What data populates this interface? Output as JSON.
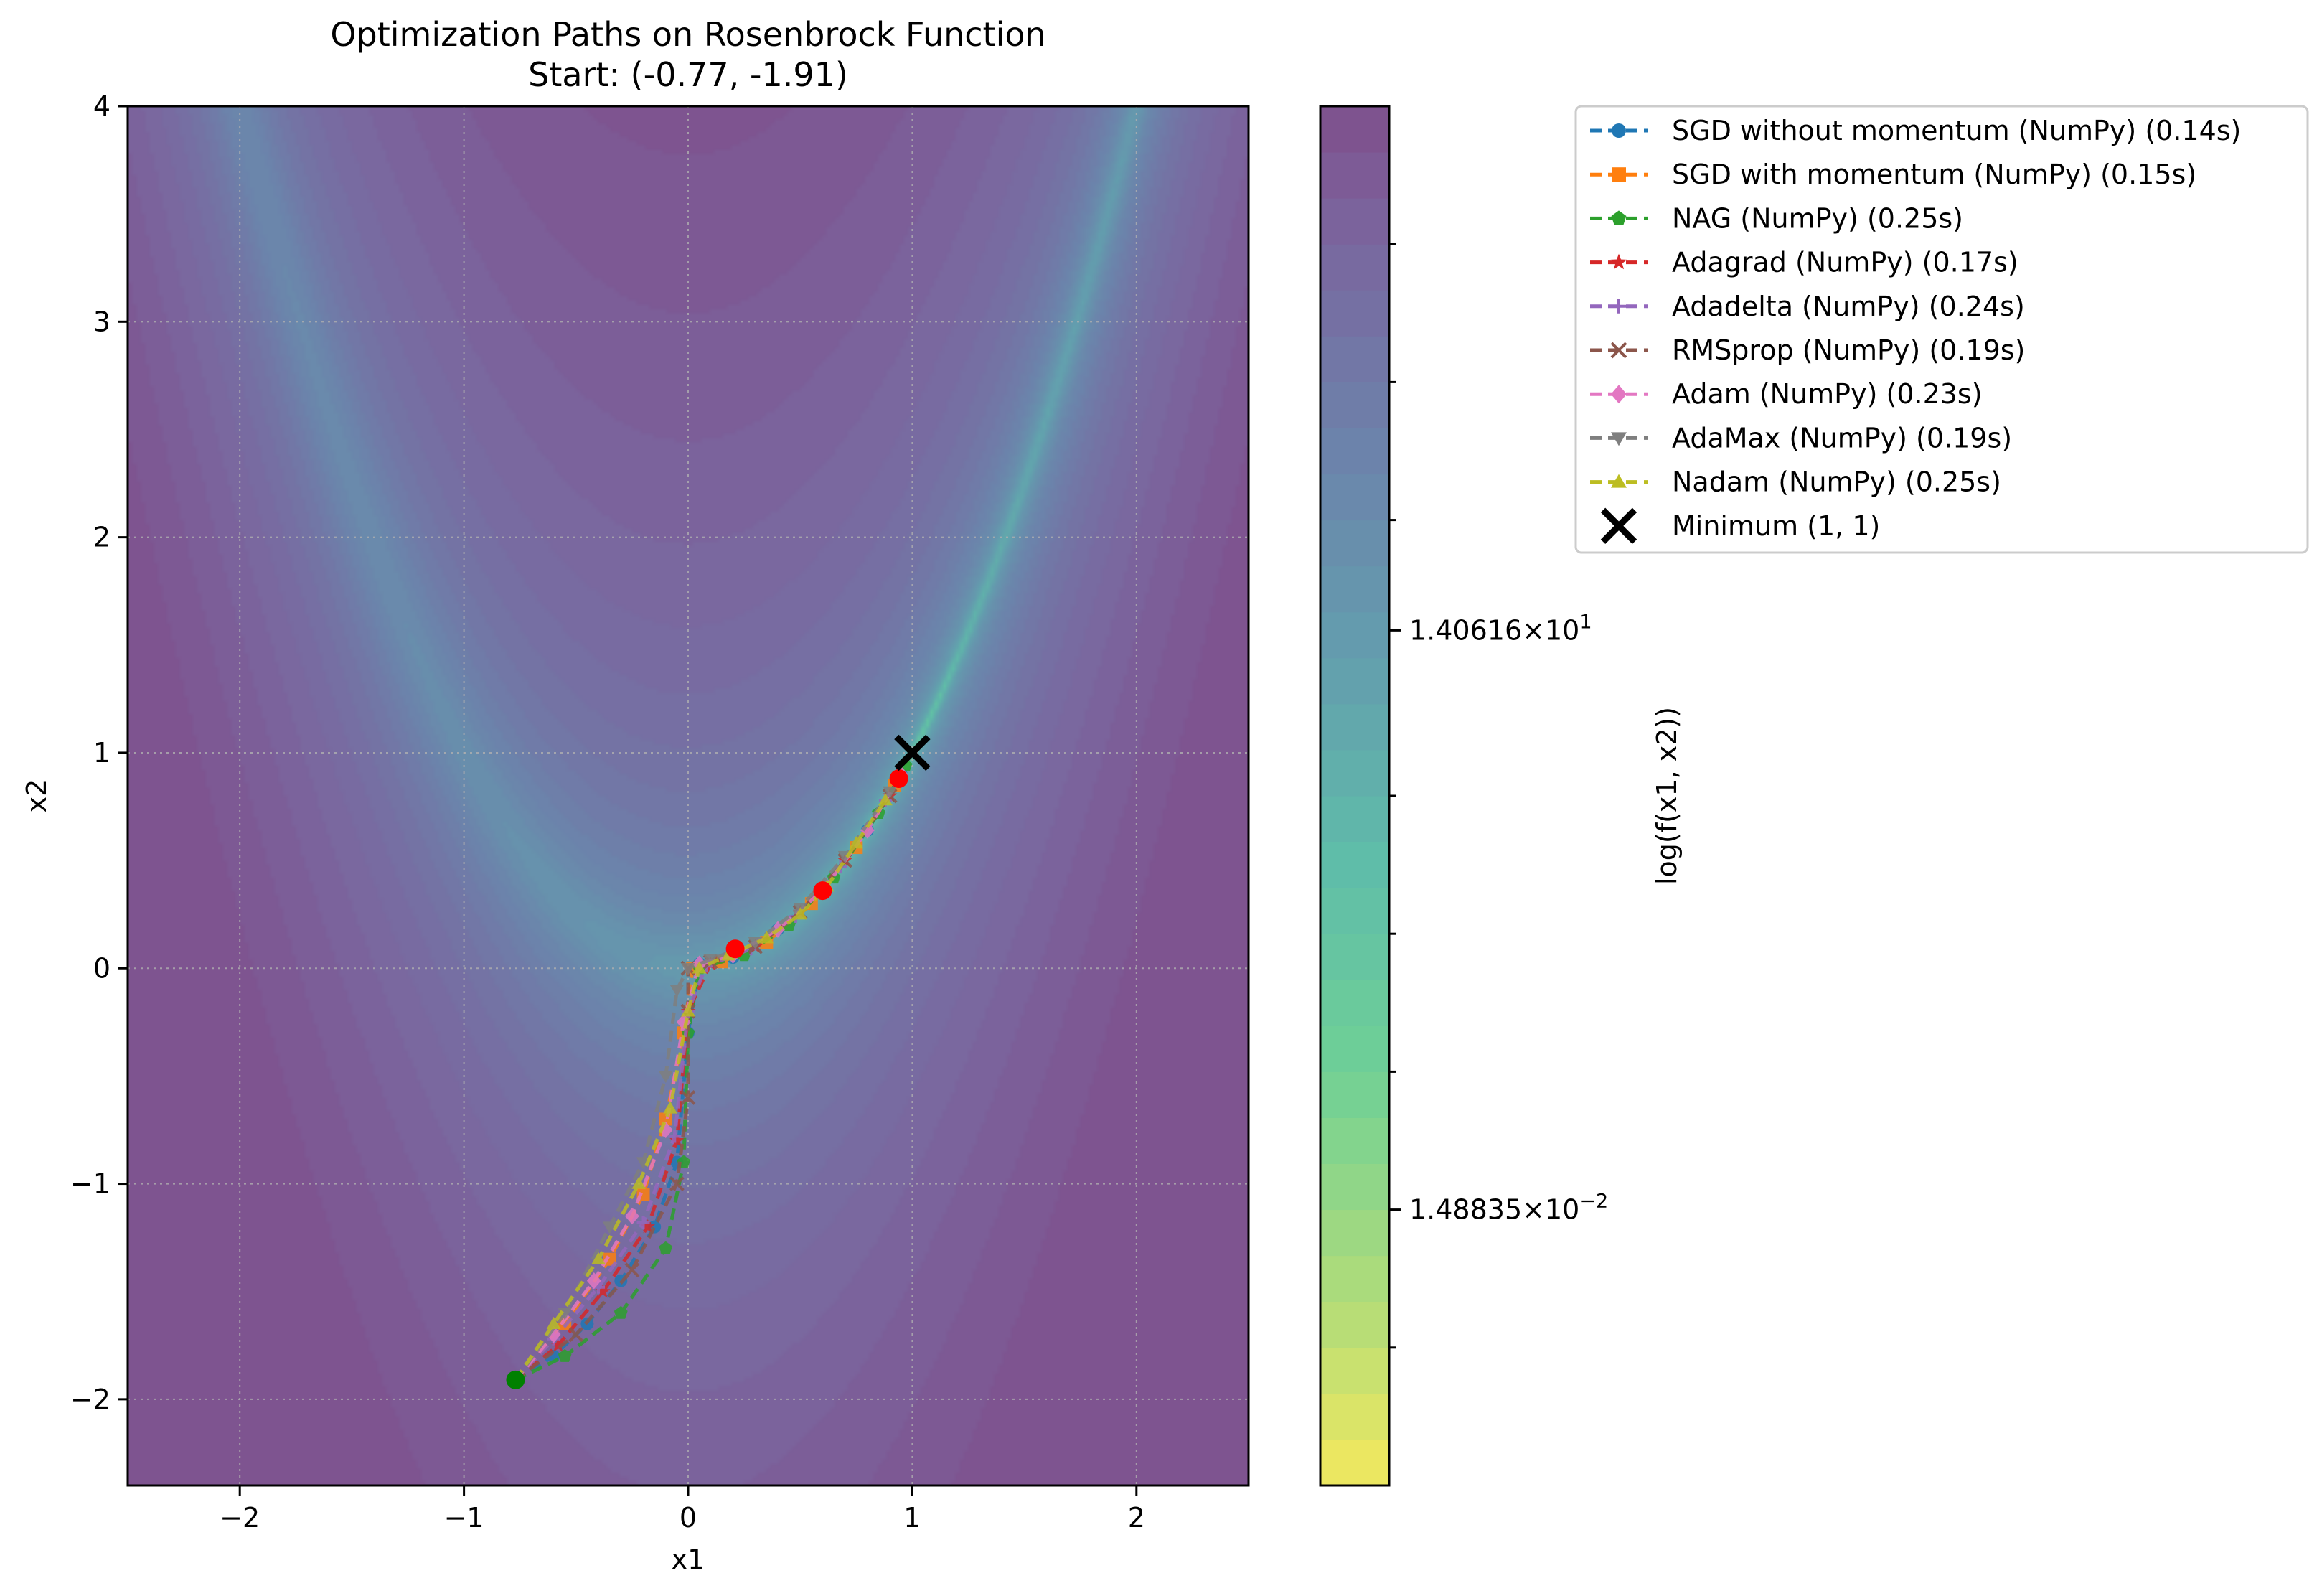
{
  "chart_data": {
    "type": "line",
    "title": "Optimization Paths on Rosenbrock Function",
    "subtitle": "Start: (-0.77, -1.91)",
    "xlabel": "x1",
    "ylabel": "x2",
    "xlim": [
      -2.5,
      2.5
    ],
    "ylim": [
      -2.4,
      4.0
    ],
    "x_ticks": [
      -2,
      -1,
      0,
      1,
      2
    ],
    "x_tick_labels": [
      "−2",
      "−1",
      "0",
      "1",
      "2"
    ],
    "y_ticks": [
      -2,
      -1,
      0,
      1,
      2,
      3,
      4
    ],
    "y_tick_labels": [
      "−2",
      "−1",
      "0",
      "1",
      "2",
      "3",
      "4"
    ],
    "grid": true,
    "background": "contour of log(f(x1, x2)) of the Rosenbrock function, viridis colormap reversed, alpha 0.7",
    "colorbar": {
      "label": "log(f(x1, x2))",
      "tick_labels": [
        {
          "base": "1.40616",
          "exp": "1",
          "frac": 0.62
        },
        {
          "base": "1.48835",
          "exp": "−2",
          "frac": 0.2
        }
      ],
      "levels": 30
    },
    "legend_position": "upper left, outside the plot",
    "start_point": {
      "x": -0.77,
      "y": -1.91,
      "color": "#008000"
    },
    "minimum": {
      "label": "Minimum (1, 1)",
      "x": 1,
      "y": 1,
      "color": "#000000"
    },
    "red_markers": [
      {
        "x": 0.21,
        "y": 0.09
      },
      {
        "x": 0.6,
        "y": 0.36
      },
      {
        "x": 0.94,
        "y": 0.88
      }
    ],
    "series": [
      {
        "name": "SGD without momentum (NumPy) (0.14s)",
        "color": "#1f77b4",
        "marker": "circle",
        "x": [
          -0.77,
          -0.6,
          -0.45,
          -0.3,
          -0.15,
          -0.05,
          0.0,
          0.05,
          0.2,
          0.4,
          0.6,
          0.8,
          0.95
        ],
        "y": [
          -1.91,
          -1.8,
          -1.65,
          -1.45,
          -1.2,
          -0.9,
          -0.3,
          0.02,
          0.05,
          0.18,
          0.36,
          0.64,
          0.9
        ]
      },
      {
        "name": "SGD with momentum (NumPy) (0.15s)",
        "color": "#ff7f0e",
        "marker": "square",
        "x": [
          -0.77,
          -0.55,
          -0.35,
          -0.2,
          -0.1,
          -0.02,
          0.02,
          0.15,
          0.35,
          0.55,
          0.75,
          0.92
        ],
        "y": [
          -1.91,
          -1.65,
          -1.35,
          -1.05,
          -0.7,
          -0.3,
          0.0,
          0.03,
          0.12,
          0.3,
          0.56,
          0.85
        ]
      },
      {
        "name": "NAG (NumPy) (0.25s)",
        "color": "#2ca02c",
        "marker": "pentagon",
        "x": [
          -0.77,
          -0.55,
          -0.3,
          -0.1,
          -0.02,
          0.0,
          0.05,
          0.25,
          0.45,
          0.65,
          0.85,
          0.97
        ],
        "y": [
          -1.91,
          -1.8,
          -1.6,
          -1.3,
          -0.9,
          -0.3,
          0.0,
          0.06,
          0.2,
          0.42,
          0.72,
          0.94
        ]
      },
      {
        "name": "Adagrad (NumPy) (0.17s)",
        "color": "#d62728",
        "marker": "star",
        "x": [
          -0.77,
          -0.58,
          -0.38,
          -0.18,
          -0.05,
          0.0,
          0.1,
          0.3,
          0.5,
          0.7,
          0.9
        ],
        "y": [
          -1.91,
          -1.75,
          -1.5,
          -1.2,
          -0.8,
          -0.2,
          0.02,
          0.1,
          0.26,
          0.5,
          0.8
        ]
      },
      {
        "name": "Adadelta (NumPy) (0.24s)",
        "color": "#9467bd",
        "marker": "plus",
        "x": [
          -0.77,
          -0.6,
          -0.4,
          -0.2,
          -0.06,
          0.0,
          0.08,
          0.28,
          0.48,
          0.68,
          0.88
        ],
        "y": [
          -1.91,
          -1.72,
          -1.48,
          -1.18,
          -0.78,
          -0.2,
          0.01,
          0.09,
          0.24,
          0.47,
          0.78
        ]
      },
      {
        "name": "RMSprop (NumPy) (0.19s)",
        "color": "#8c564b",
        "marker": "x",
        "x": [
          -0.77,
          -0.5,
          -0.25,
          -0.05,
          0.0,
          0.0,
          0.0,
          0.1,
          0.3,
          0.5,
          0.7,
          0.9
        ],
        "y": [
          -1.91,
          -1.7,
          -1.4,
          -1.0,
          -0.6,
          -0.2,
          0.0,
          0.03,
          0.1,
          0.26,
          0.5,
          0.8
        ]
      },
      {
        "name": "Adam (NumPy) (0.23s)",
        "color": "#e377c2",
        "marker": "diamond",
        "x": [
          -0.77,
          -0.6,
          -0.42,
          -0.25,
          -0.1,
          -0.02,
          0.05,
          0.2,
          0.4,
          0.6,
          0.8,
          0.95
        ],
        "y": [
          -1.91,
          -1.7,
          -1.45,
          -1.15,
          -0.75,
          -0.25,
          0.02,
          0.06,
          0.18,
          0.36,
          0.64,
          0.9
        ]
      },
      {
        "name": "AdaMax (NumPy) (0.19s)",
        "color": "#7f7f7f",
        "marker": "triangle-down",
        "x": [
          -0.77,
          -0.55,
          -0.35,
          -0.2,
          -0.1,
          -0.05,
          0.0,
          0.1,
          0.3,
          0.5,
          0.7,
          0.9
        ],
        "y": [
          -1.91,
          -1.6,
          -1.2,
          -0.9,
          -0.5,
          -0.1,
          0.0,
          0.04,
          0.12,
          0.28,
          0.52,
          0.82
        ]
      },
      {
        "name": "Nadam (NumPy) (0.25s)",
        "color": "#bcbd22",
        "marker": "triangle-up",
        "x": [
          -0.77,
          -0.6,
          -0.4,
          -0.22,
          -0.08,
          0.0,
          0.05,
          0.18,
          0.35,
          0.5,
          0.62,
          0.75,
          0.88
        ],
        "y": [
          -1.91,
          -1.65,
          -1.35,
          -1.0,
          -0.65,
          -0.2,
          0.0,
          0.06,
          0.14,
          0.25,
          0.38,
          0.58,
          0.78
        ]
      }
    ]
  }
}
